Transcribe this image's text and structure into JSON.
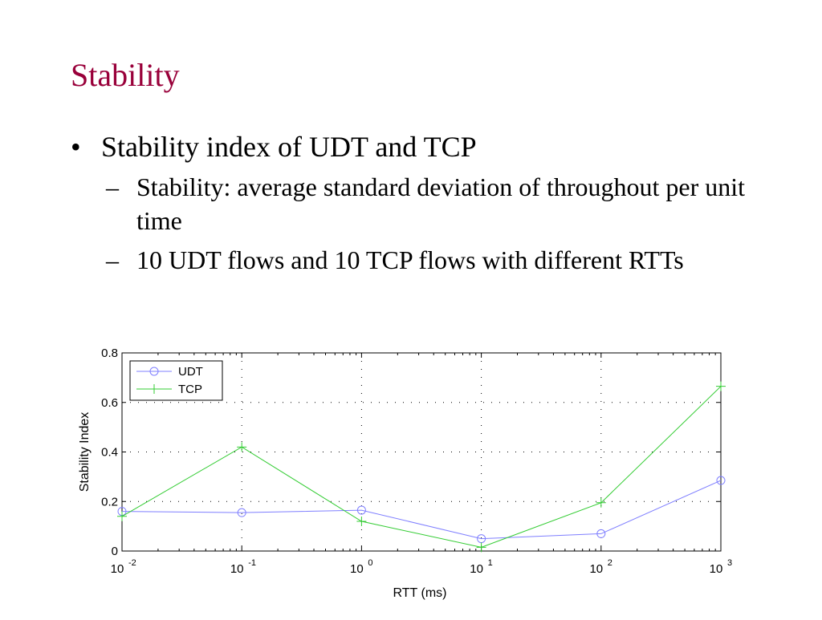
{
  "slide": {
    "title": "Stability",
    "bullet": "Stability index of UDT and TCP",
    "sub_bullets": [
      "Stability: average standard deviation of throughout per unit time",
      "10 UDT flows and 10 TCP flows with different RTTs"
    ],
    "bullet_mark": "•",
    "sub_mark": "–"
  },
  "chart_data": {
    "type": "line",
    "xlabel": "RTT (ms)",
    "ylabel": "Stability Index",
    "xscale": "log",
    "x": [
      0.01,
      0.1,
      1,
      10,
      100,
      1000
    ],
    "xticks": [
      {
        "base": "10",
        "exp": "-2"
      },
      {
        "base": "10",
        "exp": "-1"
      },
      {
        "base": "10",
        "exp": "0"
      },
      {
        "base": "10",
        "exp": "1"
      },
      {
        "base": "10",
        "exp": "2"
      },
      {
        "base": "10",
        "exp": "3"
      }
    ],
    "ylim": [
      0,
      0.8
    ],
    "yticks": [
      "0",
      "0.2",
      "0.4",
      "0.6",
      "0.8"
    ],
    "legend_position": "top-left",
    "series": [
      {
        "name": "UDT",
        "marker": "circle",
        "color": "#7f7fff",
        "values": [
          0.16,
          0.155,
          0.165,
          0.05,
          0.07,
          0.285
        ]
      },
      {
        "name": "TCP",
        "marker": "plus",
        "color": "#33cc33",
        "values": [
          0.14,
          0.42,
          0.12,
          0.015,
          0.195,
          0.665
        ]
      }
    ]
  }
}
